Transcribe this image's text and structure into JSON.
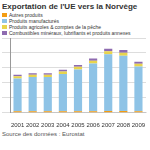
{
  "chart_data": {
    "type": "bar",
    "title": "Exportation de l'UE vers la Norvège",
    "categories": [
      "2001",
      "2002",
      "2003",
      "2004",
      "2005",
      "2006",
      "2007",
      "2008",
      "2009"
    ],
    "series": [
      {
        "name": "Autres produits",
        "color": "#f39c12",
        "values": [
          1,
          1,
          1,
          1,
          1,
          1,
          1.2,
          1.2,
          1
        ]
      },
      {
        "name": "Produits manufacturés",
        "color": "#8ec3e6",
        "values": [
          22,
          23,
          23,
          25,
          28,
          32,
          38,
          37,
          30
        ]
      },
      {
        "name": "Produits agricoles & comptes de la pêche",
        "color": "#e8d44d",
        "values": [
          1.5,
          1.5,
          1.5,
          1.6,
          1.7,
          1.8,
          2,
          2,
          1.8
        ]
      },
      {
        "name": "Combustibles minéraux, lubrifiants et produits annexes",
        "color": "#8e6bb0",
        "values": [
          1,
          1,
          1,
          1.1,
          1.3,
          1.5,
          1.6,
          1.8,
          1.4
        ]
      }
    ],
    "stacked": true,
    "ylim": [
      0,
      50
    ],
    "yticks": [
      0,
      10,
      20,
      30,
      40,
      50
    ],
    "grid": true,
    "tick_labels": "x",
    "source": "Source des données : Eurostat"
  }
}
